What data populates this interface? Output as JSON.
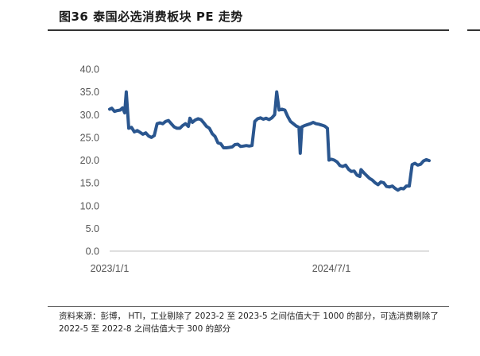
{
  "figure_title": "图36 泰国必选消费板块 PE 走势",
  "source_note": "资料来源：彭博， HTI，工业剔除了 2023-2 至 2023-5 之间估值大于 1000 的部分，可选消费剔除了 2022-5 至 2022-8 之间估值大于 300 的部分",
  "colors": {
    "line": "#2a568f",
    "axis": "#bfbfbf",
    "text": "#555555"
  },
  "chart_data": {
    "type": "line",
    "title": "",
    "xlabel": "",
    "ylabel": "",
    "ylim": [
      0,
      40
    ],
    "y_ticks": [
      "0.0",
      "5.0",
      "10.0",
      "15.0",
      "20.0",
      "25.0",
      "30.0",
      "35.0",
      "40.0"
    ],
    "x_ticks": [
      {
        "date": "2023-01-01",
        "label": "2023/1/1"
      },
      {
        "date": "2024-07-01",
        "label": "2024/7/1"
      }
    ],
    "grid": false,
    "series": [
      {
        "name": "",
        "points": [
          [
            "2023-01-01",
            31.2
          ],
          [
            "2023-01-06",
            31.4
          ],
          [
            "2023-01-13",
            30.7
          ],
          [
            "2023-01-20",
            30.9
          ],
          [
            "2023-01-27",
            31.0
          ],
          [
            "2023-02-02",
            31.5
          ],
          [
            "2023-02-07",
            30.4
          ],
          [
            "2023-02-11",
            35.0
          ],
          [
            "2023-02-17",
            27.0
          ],
          [
            "2023-02-24",
            27.2
          ],
          [
            "2023-03-03",
            26.2
          ],
          [
            "2023-03-10",
            26.5
          ],
          [
            "2023-03-17",
            26.1
          ],
          [
            "2023-03-24",
            25.7
          ],
          [
            "2023-03-31",
            26.0
          ],
          [
            "2023-04-07",
            25.3
          ],
          [
            "2023-04-14",
            25.0
          ],
          [
            "2023-04-21",
            25.4
          ],
          [
            "2023-04-28",
            28.0
          ],
          [
            "2023-05-05",
            28.2
          ],
          [
            "2023-05-12",
            28.0
          ],
          [
            "2023-05-19",
            28.5
          ],
          [
            "2023-05-26",
            28.7
          ],
          [
            "2023-06-02",
            28.0
          ],
          [
            "2023-06-09",
            27.3
          ],
          [
            "2023-06-16",
            27.0
          ],
          [
            "2023-06-23",
            27.0
          ],
          [
            "2023-06-30",
            27.6
          ],
          [
            "2023-07-07",
            28.0
          ],
          [
            "2023-07-14",
            27.4
          ],
          [
            "2023-07-18",
            29.2
          ],
          [
            "2023-07-24",
            28.3
          ],
          [
            "2023-07-31",
            28.8
          ],
          [
            "2023-08-07",
            29.1
          ],
          [
            "2023-08-14",
            28.9
          ],
          [
            "2023-08-21",
            28.2
          ],
          [
            "2023-08-28",
            27.4
          ],
          [
            "2023-09-04",
            27.0
          ],
          [
            "2023-09-11",
            25.8
          ],
          [
            "2023-09-18",
            25.2
          ],
          [
            "2023-09-25",
            23.8
          ],
          [
            "2023-10-02",
            23.6
          ],
          [
            "2023-10-09",
            22.7
          ],
          [
            "2023-10-16",
            22.7
          ],
          [
            "2023-10-23",
            22.8
          ],
          [
            "2023-10-30",
            22.9
          ],
          [
            "2023-11-06",
            23.4
          ],
          [
            "2023-11-13",
            23.5
          ],
          [
            "2023-11-20",
            23.0
          ],
          [
            "2023-11-27",
            23.1
          ],
          [
            "2023-12-04",
            23.2
          ],
          [
            "2023-12-11",
            23.1
          ],
          [
            "2023-12-18",
            23.2
          ],
          [
            "2023-12-25",
            28.5
          ],
          [
            "2024-01-01",
            29.1
          ],
          [
            "2024-01-08",
            29.3
          ],
          [
            "2024-01-15",
            29.0
          ],
          [
            "2024-01-22",
            29.2
          ],
          [
            "2024-01-29",
            28.9
          ],
          [
            "2024-02-05",
            29.3
          ],
          [
            "2024-02-12",
            30.0
          ],
          [
            "2024-02-17",
            35.0
          ],
          [
            "2024-02-23",
            31.0
          ],
          [
            "2024-03-01",
            31.2
          ],
          [
            "2024-03-08",
            31.0
          ],
          [
            "2024-03-15",
            29.6
          ],
          [
            "2024-03-22",
            28.5
          ],
          [
            "2024-03-29",
            28.0
          ],
          [
            "2024-04-05",
            27.5
          ],
          [
            "2024-04-12",
            27.2
          ],
          [
            "2024-04-15",
            21.5
          ],
          [
            "2024-04-19",
            27.3
          ],
          [
            "2024-04-26",
            27.6
          ],
          [
            "2024-05-03",
            27.8
          ],
          [
            "2024-05-10",
            28.0
          ],
          [
            "2024-05-17",
            28.3
          ],
          [
            "2024-05-24",
            28.0
          ],
          [
            "2024-05-31",
            27.9
          ],
          [
            "2024-06-07",
            27.7
          ],
          [
            "2024-06-14",
            27.5
          ],
          [
            "2024-06-21",
            27.0
          ],
          [
            "2024-06-25",
            20.0
          ],
          [
            "2024-07-01",
            20.2
          ],
          [
            "2024-07-08",
            20.0
          ],
          [
            "2024-07-15",
            19.6
          ],
          [
            "2024-07-22",
            18.8
          ],
          [
            "2024-07-29",
            18.6
          ],
          [
            "2024-08-05",
            18.9
          ],
          [
            "2024-08-12",
            18.0
          ],
          [
            "2024-08-19",
            17.5
          ],
          [
            "2024-08-26",
            17.6
          ],
          [
            "2024-09-02",
            16.7
          ],
          [
            "2024-09-09",
            16.4
          ],
          [
            "2024-09-12",
            17.9
          ],
          [
            "2024-09-19",
            17.2
          ],
          [
            "2024-09-26",
            16.6
          ],
          [
            "2024-10-03",
            16.0
          ],
          [
            "2024-10-10",
            15.6
          ],
          [
            "2024-10-17",
            15.0
          ],
          [
            "2024-10-24",
            14.6
          ],
          [
            "2024-10-31",
            15.2
          ],
          [
            "2024-11-07",
            15.0
          ],
          [
            "2024-11-14",
            14.2
          ],
          [
            "2024-11-21",
            14.1
          ],
          [
            "2024-11-28",
            14.3
          ],
          [
            "2024-12-05",
            13.8
          ],
          [
            "2024-12-12",
            13.4
          ],
          [
            "2024-12-19",
            13.8
          ],
          [
            "2024-12-26",
            13.7
          ],
          [
            "2025-01-02",
            14.3
          ],
          [
            "2025-01-09",
            14.3
          ],
          [
            "2025-01-16",
            19.0
          ],
          [
            "2025-01-23",
            19.3
          ],
          [
            "2025-01-30",
            18.9
          ],
          [
            "2025-02-06",
            19.1
          ],
          [
            "2025-02-13",
            19.8
          ],
          [
            "2025-02-20",
            20.1
          ],
          [
            "2025-02-27",
            19.9
          ]
        ]
      }
    ]
  }
}
